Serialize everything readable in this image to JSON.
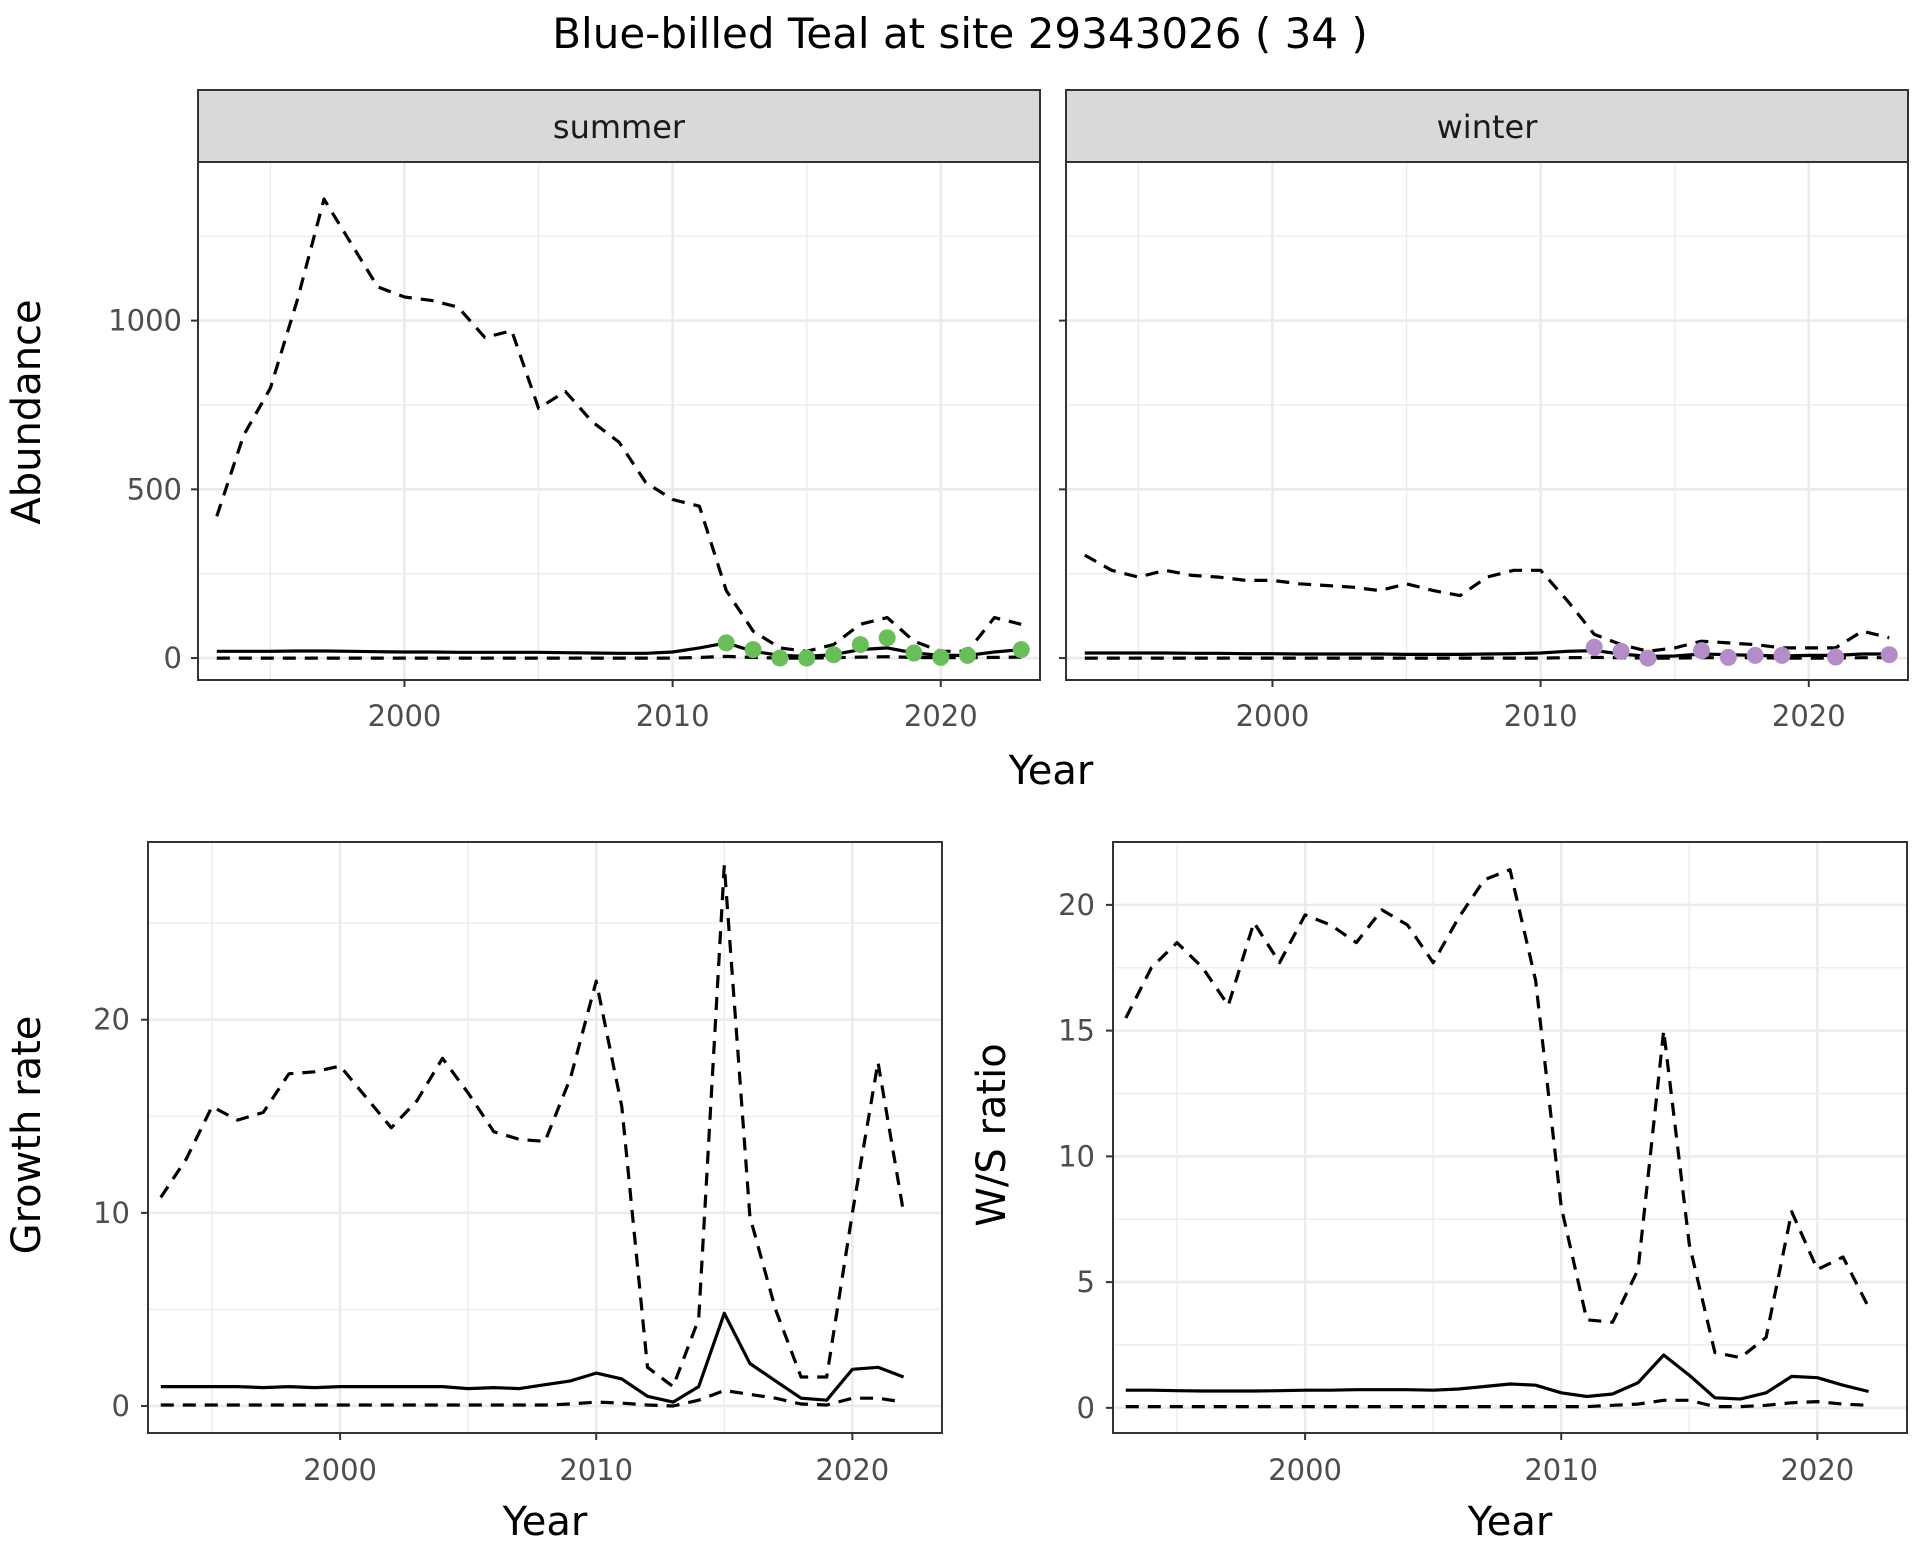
{
  "title": "Blue-billed Teal at site 29343026 ( 34 )",
  "colors": {
    "summer_points": "#6abe5a",
    "winter_points": "#b48cc8",
    "lines": "#000000",
    "strip_bg": "#d9d9d9",
    "grid": "#ebebeb"
  },
  "chart_data": [
    {
      "type": "line",
      "facet": "summer",
      "xlabel": "Year",
      "ylabel": "Abundance",
      "xlim": [
        1992.3,
        2023.7
      ],
      "ylim": [
        -65,
        1470
      ],
      "xticks": [
        2000,
        2010,
        2020
      ],
      "yticks": [
        0,
        500,
        1000
      ],
      "grid": true,
      "series": [
        {
          "style": "upper-dashed",
          "x": [
            1993,
            1994,
            1995,
            1996,
            1997,
            1998,
            1999,
            2000,
            2001,
            2002,
            2003,
            2004,
            2005,
            2006,
            2007,
            2008,
            2009,
            2010,
            2011,
            2012,
            2013,
            2014,
            2015,
            2016,
            2017,
            2018,
            2019,
            2020,
            2021,
            2022,
            2023
          ],
          "y": [
            420,
            660,
            800,
            1060,
            1360,
            1230,
            1100,
            1070,
            1060,
            1040,
            950,
            970,
            740,
            790,
            700,
            640,
            520,
            470,
            450,
            200,
            80,
            30,
            20,
            40,
            100,
            120,
            50,
            20,
            20,
            120,
            100
          ]
        },
        {
          "style": "estimate-solid",
          "x": [
            1993,
            1994,
            1995,
            1996,
            1997,
            1998,
            1999,
            2000,
            2001,
            2002,
            2003,
            2004,
            2005,
            2006,
            2007,
            2008,
            2009,
            2010,
            2011,
            2012,
            2013,
            2014,
            2015,
            2016,
            2017,
            2018,
            2019,
            2020,
            2021,
            2022,
            2023
          ],
          "y": [
            20,
            20,
            20,
            21,
            21,
            20,
            19,
            18,
            18,
            17,
            17,
            17,
            17,
            16,
            15,
            14,
            14,
            18,
            30,
            45,
            20,
            8,
            5,
            10,
            25,
            30,
            15,
            8,
            8,
            18,
            25
          ]
        },
        {
          "style": "lower-dashed",
          "x": [
            1993,
            1994,
            1995,
            1996,
            1997,
            1998,
            1999,
            2000,
            2001,
            2002,
            2003,
            2004,
            2005,
            2006,
            2007,
            2008,
            2009,
            2010,
            2011,
            2012,
            2013,
            2014,
            2015,
            2016,
            2017,
            2018,
            2019,
            2020,
            2021,
            2022,
            2023
          ],
          "y": [
            0,
            0,
            0,
            0,
            0,
            0,
            0,
            0,
            0,
            0,
            0,
            0,
            0,
            0,
            0,
            0,
            0,
            0,
            2,
            5,
            2,
            0,
            0,
            1,
            3,
            4,
            2,
            1,
            1,
            2,
            3
          ]
        }
      ],
      "points": {
        "x": [
          2012,
          2013,
          2014,
          2015,
          2016,
          2017,
          2018,
          2019,
          2020,
          2021,
          2023
        ],
        "y": [
          45,
          25,
          0,
          0,
          10,
          40,
          60,
          15,
          2,
          8,
          25
        ]
      }
    },
    {
      "type": "line",
      "facet": "winter",
      "xlabel": "Year",
      "ylabel": "Abundance",
      "xlim": [
        1992.3,
        2023.7
      ],
      "ylim": [
        -65,
        1470
      ],
      "xticks": [
        2000,
        2010,
        2020
      ],
      "yticks": [
        0,
        500,
        1000
      ],
      "grid": true,
      "series": [
        {
          "style": "upper-dashed",
          "x": [
            1993,
            1994,
            1995,
            1996,
            1997,
            1998,
            1999,
            2000,
            2001,
            2002,
            2003,
            2004,
            2005,
            2006,
            2007,
            2008,
            2009,
            2010,
            2011,
            2012,
            2013,
            2014,
            2015,
            2016,
            2017,
            2018,
            2019,
            2020,
            2021,
            2022,
            2023
          ],
          "y": [
            305,
            260,
            240,
            260,
            245,
            240,
            230,
            230,
            220,
            215,
            210,
            200,
            220,
            200,
            185,
            240,
            260,
            260,
            170,
            70,
            40,
            20,
            30,
            50,
            45,
            40,
            30,
            30,
            30,
            80,
            60
          ]
        },
        {
          "style": "estimate-solid",
          "x": [
            1993,
            1994,
            1995,
            1996,
            1997,
            1998,
            1999,
            2000,
            2001,
            2002,
            2003,
            2004,
            2005,
            2006,
            2007,
            2008,
            2009,
            2010,
            2011,
            2012,
            2013,
            2014,
            2015,
            2016,
            2017,
            2018,
            2019,
            2020,
            2021,
            2022,
            2023
          ],
          "y": [
            15,
            15,
            15,
            15,
            14,
            14,
            13,
            13,
            12,
            12,
            12,
            12,
            11,
            11,
            11,
            12,
            13,
            15,
            20,
            22,
            12,
            5,
            6,
            12,
            10,
            8,
            6,
            8,
            8,
            12,
            12
          ]
        },
        {
          "style": "lower-dashed",
          "x": [
            1993,
            1994,
            1995,
            1996,
            1997,
            1998,
            1999,
            2000,
            2001,
            2002,
            2003,
            2004,
            2005,
            2006,
            2007,
            2008,
            2009,
            2010,
            2011,
            2012,
            2013,
            2014,
            2015,
            2016,
            2017,
            2018,
            2019,
            2020,
            2021,
            2022,
            2023
          ],
          "y": [
            0,
            0,
            0,
            0,
            0,
            0,
            0,
            0,
            0,
            0,
            0,
            0,
            0,
            0,
            0,
            0,
            0,
            0,
            1,
            2,
            1,
            0,
            0,
            1,
            1,
            1,
            0,
            0,
            0,
            1,
            1
          ]
        }
      ],
      "points": {
        "x": [
          2012,
          2013,
          2014,
          2016,
          2017,
          2018,
          2019,
          2021,
          2023
        ],
        "y": [
          32,
          20,
          0,
          22,
          2,
          8,
          8,
          3,
          10
        ]
      }
    },
    {
      "type": "line",
      "xlabel": "Year",
      "ylabel": "Growth rate",
      "xlim": [
        1992.5,
        2023.5
      ],
      "ylim": [
        -1.4,
        29.2
      ],
      "xticks": [
        2000,
        2010,
        2020
      ],
      "yticks": [
        0,
        10,
        20
      ],
      "grid": true,
      "series": [
        {
          "style": "upper-dashed",
          "x": [
            1993,
            1994,
            1995,
            1996,
            1997,
            1998,
            1999,
            2000,
            2001,
            2002,
            2003,
            2004,
            2005,
            2006,
            2007,
            2008,
            2009,
            2010,
            2011,
            2012,
            2013,
            2014,
            2015,
            2016,
            2017,
            2018,
            2019,
            2020,
            2021,
            2022
          ],
          "y": [
            10.8,
            12.8,
            15.5,
            14.8,
            15.2,
            17.2,
            17.3,
            17.6,
            16,
            14.4,
            15.8,
            18,
            16.2,
            14.2,
            13.8,
            13.7,
            17,
            22,
            15.5,
            2,
            1,
            4.5,
            28,
            9.8,
            5,
            1.5,
            1.5,
            10,
            17.8,
            10
          ]
        },
        {
          "style": "estimate-solid",
          "x": [
            1993,
            1994,
            1995,
            1996,
            1997,
            1998,
            1999,
            2000,
            2001,
            2002,
            2003,
            2004,
            2005,
            2006,
            2007,
            2008,
            2009,
            2010,
            2011,
            2012,
            2013,
            2014,
            2015,
            2016,
            2017,
            2018,
            2019,
            2020,
            2021,
            2022
          ],
          "y": [
            1,
            1,
            1,
            1,
            0.95,
            1,
            0.95,
            1,
            1,
            1,
            1,
            1,
            0.9,
            0.95,
            0.9,
            1.1,
            1.3,
            1.7,
            1.4,
            0.5,
            0.2,
            1,
            4.8,
            2.2,
            1.3,
            0.4,
            0.3,
            1.9,
            2,
            1.5
          ]
        },
        {
          "style": "lower-dashed",
          "x": [
            1993,
            1994,
            1995,
            1996,
            1997,
            1998,
            1999,
            2000,
            2001,
            2002,
            2003,
            2004,
            2005,
            2006,
            2007,
            2008,
            2009,
            2010,
            2011,
            2012,
            2013,
            2014,
            2015,
            2016,
            2017,
            2018,
            2019,
            2020,
            2021,
            2022
          ],
          "y": [
            0.05,
            0.05,
            0.05,
            0.05,
            0.05,
            0.05,
            0.05,
            0.05,
            0.05,
            0.05,
            0.05,
            0.05,
            0.05,
            0.05,
            0.05,
            0.05,
            0.1,
            0.2,
            0.15,
            0.05,
            0,
            0.3,
            0.8,
            0.6,
            0.4,
            0.1,
            0.05,
            0.4,
            0.4,
            0.2
          ]
        }
      ]
    },
    {
      "type": "line",
      "xlabel": "Year",
      "ylabel": "W/S ratio",
      "xlim": [
        1992.5,
        2023.5
      ],
      "ylim": [
        -1,
        22.5
      ],
      "xticks": [
        2000,
        2010,
        2020
      ],
      "yticks": [
        0,
        5,
        10,
        15,
        20
      ],
      "grid": true,
      "series": [
        {
          "style": "upper-dashed",
          "x": [
            1993,
            1994,
            1995,
            1996,
            1997,
            1998,
            1999,
            2000,
            2001,
            2002,
            2003,
            2004,
            2005,
            2006,
            2007,
            2008,
            2009,
            2010,
            2011,
            2012,
            2013,
            2014,
            2015,
            2016,
            2017,
            2018,
            2019,
            2020,
            2021,
            2022
          ],
          "y": [
            15.5,
            17.5,
            18.5,
            17.5,
            16,
            19.3,
            17.7,
            19.6,
            19.2,
            18.5,
            19.8,
            19.2,
            17.7,
            19.5,
            21,
            21.4,
            17,
            8,
            3.5,
            3.4,
            5.5,
            15,
            6.5,
            2.2,
            2,
            2.8,
            7.8,
            5.5,
            6,
            4
          ]
        },
        {
          "style": "estimate-solid",
          "x": [
            1993,
            1994,
            1995,
            1996,
            1997,
            1998,
            1999,
            2000,
            2001,
            2002,
            2003,
            2004,
            2005,
            2006,
            2007,
            2008,
            2009,
            2010,
            2011,
            2012,
            2013,
            2014,
            2015,
            2016,
            2017,
            2018,
            2019,
            2020,
            2021,
            2022
          ],
          "y": [
            0.7,
            0.7,
            0.68,
            0.67,
            0.67,
            0.67,
            0.68,
            0.7,
            0.7,
            0.72,
            0.72,
            0.72,
            0.7,
            0.75,
            0.85,
            0.95,
            0.9,
            0.6,
            0.45,
            0.55,
            1,
            2.1,
            1.3,
            0.4,
            0.35,
            0.6,
            1.25,
            1.2,
            0.9,
            0.65
          ]
        },
        {
          "style": "lower-dashed",
          "x": [
            1993,
            1994,
            1995,
            1996,
            1997,
            1998,
            1999,
            2000,
            2001,
            2002,
            2003,
            2004,
            2005,
            2006,
            2007,
            2008,
            2009,
            2010,
            2011,
            2012,
            2013,
            2014,
            2015,
            2016,
            2017,
            2018,
            2019,
            2020,
            2021,
            2022
          ],
          "y": [
            0.05,
            0.05,
            0.05,
            0.05,
            0.05,
            0.05,
            0.05,
            0.05,
            0.05,
            0.05,
            0.05,
            0.05,
            0.05,
            0.05,
            0.05,
            0.05,
            0.05,
            0.05,
            0.05,
            0.1,
            0.15,
            0.3,
            0.3,
            0.05,
            0.05,
            0.1,
            0.2,
            0.25,
            0.15,
            0.1
          ]
        }
      ]
    }
  ]
}
